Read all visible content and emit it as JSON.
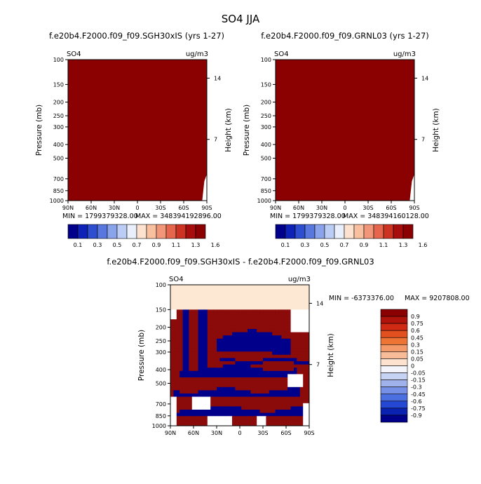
{
  "figure": {
    "title": "SO4 JJA"
  },
  "colors": {
    "dark_red": "#8b0000",
    "increase": "#8b0a0a",
    "decrease": "#00008b",
    "neutral": "#ffffff",
    "small_pos": "#fde8d4",
    "axis": "#000000"
  },
  "chart_data": [
    {
      "id": "panel1",
      "type": "heatmap",
      "title": "f.e20b4.F2000.f09_f09.SGH30xIS (yrs 1-27)",
      "corner_left": "SO4",
      "corner_right": "ug/m3",
      "xlabel": "",
      "ylabel": "Pressure (mb)",
      "ylabel_right": "Height (km)",
      "x_ticks": [
        "90N",
        "60N",
        "30N",
        "0",
        "30S",
        "60S",
        "90S"
      ],
      "xlim": [
        90,
        -90
      ],
      "y_ticks": [
        100,
        150,
        200,
        250,
        300,
        400,
        500,
        700,
        850,
        1000
      ],
      "ylim": [
        100,
        1000
      ],
      "y_ticks_right": [
        14,
        7
      ],
      "min_label": "MIN = 1799379328.00",
      "max_label": "MAX = 348394192896.00",
      "field": "values everywhere exceed top color level (1.6) - whole domain in highest contour band; small white notch near 80S-90S below 650 mb"
    },
    {
      "id": "panel2",
      "type": "heatmap",
      "title": "f.e20b4.F2000.f09_f09.GRNL03 (yrs 1-27)",
      "corner_left": "SO4",
      "corner_right": "ug/m3",
      "xlabel": "",
      "ylabel": "Pressure (mb)",
      "ylabel_right": "Height (km)",
      "x_ticks": [
        "90N",
        "60N",
        "30N",
        "0",
        "30S",
        "60S",
        "90S"
      ],
      "xlim": [
        90,
        -90
      ],
      "y_ticks": [
        100,
        150,
        200,
        250,
        300,
        400,
        500,
        700,
        850,
        1000
      ],
      "ylim": [
        100,
        1000
      ],
      "y_ticks_right": [
        14,
        7
      ],
      "min_label": "MIN = 1799379328.00",
      "max_label": "MAX = 348394160128.00",
      "field": "values everywhere exceed top color level (1.6) - whole domain in highest contour band; small white notch near 80S-90S below 650 mb"
    },
    {
      "id": "panel3",
      "type": "heatmap",
      "title": "f.e20b4.F2000.f09_f09.SGH30xIS - f.e20b4.F2000.f09_f09.GRNL03",
      "corner_left": "SO4",
      "corner_right": "ug/m3",
      "xlabel": "",
      "ylabel": "Pressure (mb)",
      "ylabel_right": "Height (km)",
      "x_ticks": [
        "90N",
        "60N",
        "30N",
        "0",
        "30S",
        "60S",
        "90S"
      ],
      "xlim": [
        90,
        -90
      ],
      "y_ticks": [
        100,
        150,
        200,
        250,
        300,
        400,
        500,
        700,
        850,
        1000
      ],
      "ylim": [
        100,
        1000
      ],
      "y_ticks_right": [
        14,
        7
      ],
      "min_label": "MIN = -6373376.00",
      "max_label": "MAX = 9207808.00",
      "field": "alternating horizontal bands of large positive (dark red) and large negative (dark blue) differences; light peach band 100-150 mb; white patches near surface"
    }
  ],
  "colorbar_abs": {
    "orientation": "horizontal",
    "labels": [
      "0.1",
      "0.3",
      "0.5",
      "0.7",
      "0.9",
      "1.1",
      "1.3",
      "1.6"
    ],
    "colors": [
      "#00008b",
      "#0f22b8",
      "#2d4fcf",
      "#5878e0",
      "#8aa4ec",
      "#bccdf5",
      "#eaf0fb",
      "#fde2cf",
      "#f9c0a0",
      "#f2967a",
      "#e5664c",
      "#cc3322",
      "#a80d0d",
      "#8b0000"
    ]
  },
  "colorbar_diff": {
    "orientation": "vertical",
    "labels": [
      "0.9",
      "0.75",
      "0.6",
      "0.45",
      "0.3",
      "0.15",
      "0.05",
      "0",
      "-0.05",
      "-0.15",
      "-0.3",
      "-0.45",
      "-0.6",
      "-0.75",
      "-0.9"
    ],
    "colors": [
      "#8b0000",
      "#b0120c",
      "#d02a14",
      "#e3501f",
      "#ee7436",
      "#f49a6a",
      "#f8bd98",
      "#fde2cf",
      "#f3f5fb",
      "#c7d3f2",
      "#9fb2ec",
      "#7590e6",
      "#4b6ee0",
      "#2548d4",
      "#0b22b0",
      "#00008b"
    ]
  }
}
